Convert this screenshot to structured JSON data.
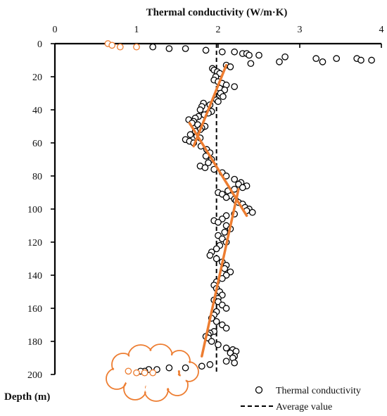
{
  "chart_data": {
    "type": "scatter",
    "x_axis_title": "Thermal conductivity (W/m·K)",
    "y_axis_title": "Depth (m)",
    "xlim": [
      0,
      4
    ],
    "ylim": [
      0,
      200
    ],
    "x_ticks": [
      "0",
      "1",
      "2",
      "3",
      "4"
    ],
    "y_ticks": [
      "0",
      "20",
      "40",
      "60",
      "80",
      "100",
      "120",
      "140",
      "160",
      "180",
      "200"
    ],
    "average_value": 1.98,
    "legend": {
      "placement": "bottom-right",
      "items": [
        {
          "label": "Thermal conductivity",
          "symbol": "open-circle"
        },
        {
          "label": "Average value",
          "symbol": "dashed-line"
        }
      ]
    },
    "colors": {
      "points": "#000000",
      "highlight": "#ED7D31",
      "trend": "#ED7D31"
    },
    "series": [
      {
        "name": "Thermal conductivity",
        "points": [
          [
            1.2,
            2
          ],
          [
            1.4,
            3
          ],
          [
            1.6,
            3
          ],
          [
            1.85,
            4
          ],
          [
            2.05,
            5
          ],
          [
            2.2,
            5
          ],
          [
            2.3,
            6
          ],
          [
            2.35,
            6
          ],
          [
            2.38,
            7
          ],
          [
            2.5,
            7
          ],
          [
            2.82,
            8
          ],
          [
            2.75,
            11
          ],
          [
            3.2,
            9
          ],
          [
            3.28,
            11
          ],
          [
            3.45,
            9
          ],
          [
            3.7,
            9
          ],
          [
            3.75,
            10
          ],
          [
            3.88,
            10
          ],
          [
            2.4,
            12
          ],
          [
            2.1,
            13
          ],
          [
            2.15,
            14
          ],
          [
            1.93,
            15
          ],
          [
            1.95,
            16
          ],
          [
            1.99,
            17
          ],
          [
            2.02,
            18
          ],
          [
            1.97,
            20
          ],
          [
            1.95,
            22
          ],
          [
            2.0,
            23
          ],
          [
            2.05,
            24
          ],
          [
            2.1,
            25
          ],
          [
            2.2,
            26
          ],
          [
            2.02,
            27
          ],
          [
            2.08,
            28
          ],
          [
            2.03,
            30
          ],
          [
            2.06,
            32
          ],
          [
            1.98,
            34
          ],
          [
            2.0,
            35
          ],
          [
            1.82,
            36
          ],
          [
            1.9,
            37
          ],
          [
            1.8,
            38
          ],
          [
            1.78,
            40
          ],
          [
            1.92,
            41
          ],
          [
            1.88,
            42
          ],
          [
            1.83,
            43
          ],
          [
            1.76,
            44
          ],
          [
            1.72,
            45
          ],
          [
            1.64,
            46
          ],
          [
            1.7,
            47
          ],
          [
            1.68,
            48
          ],
          [
            1.75,
            49
          ],
          [
            1.84,
            50
          ],
          [
            1.8,
            51
          ],
          [
            1.78,
            52
          ],
          [
            1.72,
            53
          ],
          [
            1.66,
            55
          ],
          [
            1.74,
            56
          ],
          [
            1.78,
            57
          ],
          [
            1.6,
            58
          ],
          [
            1.65,
            59
          ],
          [
            1.7,
            60
          ],
          [
            1.79,
            62
          ],
          [
            1.86,
            64
          ],
          [
            1.9,
            66
          ],
          [
            1.85,
            68
          ],
          [
            1.92,
            70
          ],
          [
            1.88,
            72
          ],
          [
            1.78,
            74
          ],
          [
            1.84,
            75
          ],
          [
            1.95,
            76
          ],
          [
            2.05,
            78
          ],
          [
            2.1,
            80
          ],
          [
            2.2,
            82
          ],
          [
            2.28,
            84
          ],
          [
            2.35,
            86
          ],
          [
            2.25,
            85
          ],
          [
            2.3,
            87
          ],
          [
            2.2,
            88
          ],
          [
            2.12,
            89
          ],
          [
            2.0,
            90
          ],
          [
            2.05,
            91
          ],
          [
            2.15,
            92
          ],
          [
            2.1,
            93
          ],
          [
            2.2,
            94
          ],
          [
            2.22,
            95
          ],
          [
            2.25,
            96
          ],
          [
            2.3,
            97
          ],
          [
            2.33,
            99
          ],
          [
            2.38,
            100
          ],
          [
            2.42,
            102
          ],
          [
            2.35,
            101
          ],
          [
            2.2,
            103
          ],
          [
            2.1,
            104
          ],
          [
            2.05,
            106
          ],
          [
            1.95,
            107
          ],
          [
            2.0,
            108
          ],
          [
            2.1,
            110
          ],
          [
            2.15,
            112
          ],
          [
            2.08,
            114
          ],
          [
            2.0,
            116
          ],
          [
            2.05,
            118
          ],
          [
            2.1,
            120
          ],
          [
            2.02,
            122
          ],
          [
            1.98,
            124
          ],
          [
            1.92,
            126
          ],
          [
            1.9,
            128
          ],
          [
            1.98,
            130
          ],
          [
            2.05,
            132
          ],
          [
            2.1,
            134
          ],
          [
            2.08,
            136
          ],
          [
            2.15,
            138
          ],
          [
            2.1,
            140
          ],
          [
            2.05,
            142
          ],
          [
            1.98,
            144
          ],
          [
            1.95,
            146
          ],
          [
            1.98,
            148
          ],
          [
            2.02,
            150
          ],
          [
            2.05,
            152
          ],
          [
            2.0,
            154
          ],
          [
            1.95,
            155
          ],
          [
            2.0,
            156
          ],
          [
            2.05,
            158
          ],
          [
            2.1,
            160
          ],
          [
            1.98,
            162
          ],
          [
            1.95,
            164
          ],
          [
            1.92,
            166
          ],
          [
            1.98,
            168
          ],
          [
            2.05,
            170
          ],
          [
            2.1,
            172
          ],
          [
            1.95,
            174
          ],
          [
            1.9,
            175
          ],
          [
            1.88,
            176
          ],
          [
            1.85,
            177
          ],
          [
            1.88,
            178
          ],
          [
            1.92,
            180
          ],
          [
            2.0,
            182
          ],
          [
            2.1,
            184
          ],
          [
            2.18,
            185
          ],
          [
            2.22,
            186
          ],
          [
            2.15,
            187
          ],
          [
            2.2,
            189
          ],
          [
            2.18,
            190
          ],
          [
            2.1,
            192
          ],
          [
            2.2,
            193
          ],
          [
            1.9,
            194
          ],
          [
            1.8,
            195
          ],
          [
            1.6,
            196
          ],
          [
            1.4,
            196
          ],
          [
            1.25,
            197
          ],
          [
            1.15,
            197
          ],
          [
            1.1,
            198
          ],
          [
            1.05,
            198
          ]
        ]
      },
      {
        "name": "",
        "style": "highlight",
        "points": [
          [
            0.65,
            0
          ],
          [
            0.7,
            1
          ],
          [
            0.8,
            2
          ],
          [
            1.0,
            2
          ],
          [
            0.9,
            198
          ],
          [
            1.0,
            199
          ],
          [
            1.1,
            199
          ],
          [
            1.2,
            199
          ]
        ]
      }
    ],
    "trend_lines": [
      [
        [
          2.1,
          13
        ],
        [
          1.7,
          62
        ]
      ],
      [
        [
          1.65,
          48
        ],
        [
          2.35,
          104
        ]
      ],
      [
        [
          2.25,
          88
        ],
        [
          1.8,
          189
        ]
      ]
    ]
  }
}
